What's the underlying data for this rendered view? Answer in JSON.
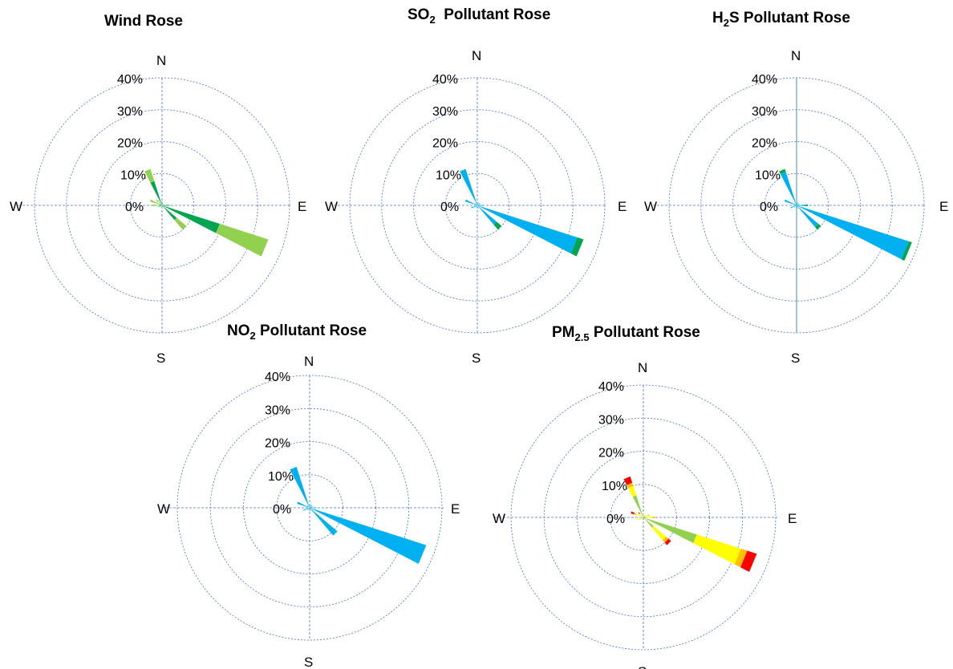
{
  "labels": {
    "north": "N",
    "south": "S",
    "east": "E",
    "west": "W",
    "ticks": [
      "0%",
      "10%",
      "20%",
      "30%",
      "40%"
    ]
  },
  "titles": {
    "wind": {
      "text": "Wind Rose"
    },
    "so2": {
      "pre": "SO",
      "sub": "2",
      "post": "  Pollutant Rose"
    },
    "h2s": {
      "pre": "H",
      "sub": "2",
      "post": "S Pollutant Rose"
    },
    "no2": {
      "pre": "NO",
      "sub": "2",
      "post": " Pollutant Rose"
    },
    "pm25": {
      "pre": "PM",
      "sub": "2.5",
      "post": " Pollutant Rose"
    }
  },
  "colors": {
    "blue": "#00b0f0",
    "dark_green": "#00a550",
    "light_green": "#92d050",
    "yellow": "#ffff00",
    "orange": "#ffc000",
    "red": "#ff0000"
  },
  "chart_data": [
    {
      "type": "polar-stacked-bar",
      "title": "Wind Rose",
      "rlim": [
        0,
        40
      ],
      "rticks": [
        0,
        10,
        20,
        30,
        40
      ],
      "directions": [
        "N",
        "NNE",
        "NE",
        "ENE",
        "E",
        "ESE",
        "SE",
        "SSE",
        "S",
        "SSW",
        "SW",
        "WSW",
        "W",
        "WNW",
        "NW",
        "NNW"
      ],
      "stack_colors": [
        "#00a550",
        "#92d050"
      ],
      "values": [
        [
          1,
          0.5
        ],
        [
          0.5,
          0
        ],
        [
          0.5,
          0
        ],
        [
          0.5,
          0
        ],
        [
          2,
          0.5
        ],
        [
          19,
          16
        ],
        [
          6,
          4
        ],
        [
          0.5,
          0
        ],
        [
          0.5,
          0
        ],
        [
          0,
          0
        ],
        [
          0.5,
          0
        ],
        [
          1,
          0.5
        ],
        [
          1,
          2
        ],
        [
          1,
          3
        ],
        [
          0.5,
          2
        ],
        [
          8,
          4
        ]
      ]
    },
    {
      "type": "polar-stacked-bar",
      "title": "SO2 Pollutant Rose",
      "rlim": [
        0,
        40
      ],
      "rticks": [
        0,
        10,
        20,
        30,
        40
      ],
      "directions": [
        "N",
        "NNE",
        "NE",
        "ENE",
        "E",
        "ESE",
        "SE",
        "SSE",
        "S",
        "SSW",
        "SW",
        "WSW",
        "W",
        "WNW",
        "NW",
        "NNW"
      ],
      "stack_colors": [
        "#00b0f0",
        "#00a550"
      ],
      "values": [
        [
          1,
          0
        ],
        [
          1,
          0
        ],
        [
          1,
          0
        ],
        [
          1,
          0
        ],
        [
          2,
          0
        ],
        [
          33,
          2
        ],
        [
          8,
          2
        ],
        [
          1,
          0
        ],
        [
          1,
          0
        ],
        [
          0.5,
          0
        ],
        [
          1,
          0
        ],
        [
          2,
          0
        ],
        [
          1,
          0
        ],
        [
          4,
          0
        ],
        [
          1,
          0
        ],
        [
          12,
          0
        ]
      ]
    },
    {
      "type": "polar-stacked-bar",
      "title": "H2S Pollutant Rose",
      "rlim": [
        0,
        40
      ],
      "rticks": [
        0,
        10,
        20,
        30,
        40
      ],
      "directions": [
        "N",
        "NNE",
        "NE",
        "ENE",
        "E",
        "ESE",
        "SE",
        "SSE",
        "S",
        "SSW",
        "SW",
        "WSW",
        "W",
        "WNW",
        "NW",
        "NNW"
      ],
      "stack_colors": [
        "#00b0f0",
        "#00a550"
      ],
      "values": [
        [
          1,
          0
        ],
        [
          1,
          0
        ],
        [
          1,
          0
        ],
        [
          1,
          0
        ],
        [
          3,
          0.5
        ],
        [
          37,
          1
        ],
        [
          9,
          1
        ],
        [
          1,
          0
        ],
        [
          1,
          0
        ],
        [
          0.5,
          0
        ],
        [
          1,
          0
        ],
        [
          2,
          0
        ],
        [
          1,
          0
        ],
        [
          4,
          0
        ],
        [
          1,
          0
        ],
        [
          11,
          1
        ]
      ]
    },
    {
      "type": "polar-stacked-bar",
      "title": "NO2 Pollutant Rose",
      "rlim": [
        0,
        40
      ],
      "rticks": [
        0,
        10,
        20,
        30,
        40
      ],
      "directions": [
        "N",
        "NNE",
        "NE",
        "ENE",
        "E",
        "ESE",
        "SE",
        "SSE",
        "S",
        "SSW",
        "SW",
        "WSW",
        "W",
        "WNW",
        "NW",
        "NNW"
      ],
      "stack_colors": [
        "#00b0f0"
      ],
      "values": [
        [
          1
        ],
        [
          1
        ],
        [
          1
        ],
        [
          1
        ],
        [
          2
        ],
        [
          37
        ],
        [
          11
        ],
        [
          1
        ],
        [
          1
        ],
        [
          0.5
        ],
        [
          1
        ],
        [
          2
        ],
        [
          1
        ],
        [
          4
        ],
        [
          1
        ],
        [
          13
        ]
      ]
    },
    {
      "type": "polar-stacked-bar",
      "title": "PM2.5 Pollutant Rose",
      "rlim": [
        0,
        40
      ],
      "rticks": [
        0,
        10,
        20,
        30,
        40
      ],
      "directions": [
        "N",
        "NNE",
        "NE",
        "ENE",
        "E",
        "ESE",
        "SE",
        "SSE",
        "S",
        "SSW",
        "SW",
        "WSW",
        "W",
        "WNW",
        "NW",
        "NNW"
      ],
      "stack_colors": [
        "#92d050",
        "#ffff00",
        "#ffc000",
        "#ff0000"
      ],
      "values": [
        [
          0.5,
          0.5,
          0,
          0
        ],
        [
          0.5,
          0.5,
          0,
          0
        ],
        [
          0.5,
          0.5,
          0,
          0
        ],
        [
          0.5,
          1,
          0.5,
          0
        ],
        [
          1,
          2,
          0.5,
          0
        ],
        [
          17,
          14,
          2,
          3
        ],
        [
          4,
          5,
          1,
          1
        ],
        [
          0.5,
          0.5,
          0,
          0
        ],
        [
          0.5,
          0,
          0,
          0
        ],
        [
          0,
          0,
          0,
          0
        ],
        [
          0.5,
          0.5,
          0,
          0
        ],
        [
          1,
          1,
          0,
          0
        ],
        [
          0.5,
          0.5,
          0,
          0
        ],
        [
          0.5,
          2,
          0.5,
          1
        ],
        [
          0.5,
          1,
          0,
          0.5
        ],
        [
          7,
          3,
          1,
          2
        ]
      ]
    }
  ]
}
